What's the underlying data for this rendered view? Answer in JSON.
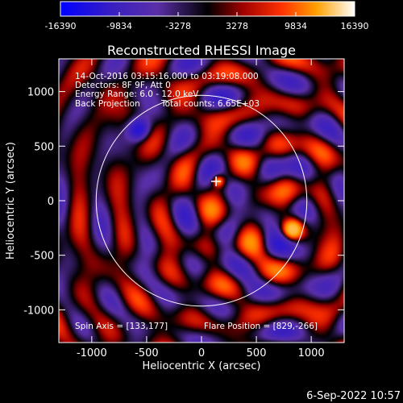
{
  "chart_data": {
    "type": "heatmap",
    "title": "Reconstructed RHESSI Image",
    "xlabel": "Heliocentric X (arcsec)",
    "ylabel": "Heliocentric Y (arcsec)",
    "xlim": [
      -1300,
      1300
    ],
    "ylim": [
      -1300,
      1300
    ],
    "xticks": [
      -1000,
      -500,
      0,
      500,
      1000
    ],
    "yticks": [
      1000,
      500,
      0,
      -500,
      -1000
    ],
    "colorbar": {
      "range": [
        -16390,
        16390
      ],
      "tick_values": [
        -16390,
        -9834,
        -3278,
        3278,
        9834,
        16390
      ],
      "tick_labels": [
        "-16390",
        "-9834",
        "-3278",
        "3278",
        "9834",
        "16390"
      ]
    },
    "annotations": {
      "line1": "14-Oct-2016 03:15:16.000 to 03:19:08.000",
      "line2": "Detectors: 8F 9F, Att 0",
      "line3": "Energy Range: 6.0 - 12.0 keV",
      "line4a": "Back Projection",
      "line4b": "Total counts: 6.65E+03",
      "spin_axis": "Spin Axis = [133,177]",
      "flare_position": "Flare Position = [829,-266]"
    },
    "sources": [
      {
        "x": 829,
        "y": -266,
        "value": 16390
      },
      {
        "x": 155,
        "y": 180,
        "value": 12000
      }
    ],
    "negative_spot": {
      "x": -570,
      "y": 650,
      "value": -16390
    },
    "solar_limb_radius": 960,
    "crosshair": {
      "x": 133,
      "y": 177
    },
    "grid": false
  },
  "timestamp": "6-Sep-2022 10:57",
  "colors": {
    "background": "#000000",
    "axes": "#ffffff",
    "colormap": [
      "#0000ff",
      "#5a2fa8",
      "#1a1030",
      "#000000",
      "#b01010",
      "#ff3000",
      "#ffa000",
      "#ffffff"
    ]
  }
}
